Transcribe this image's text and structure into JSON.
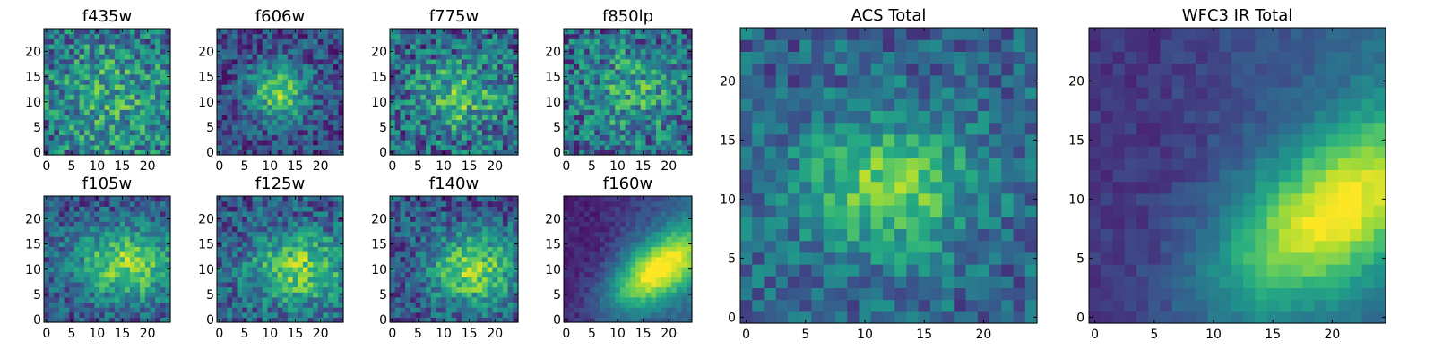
{
  "figure": {
    "colormap": "viridis",
    "colors": [
      "#440154",
      "#3b528b",
      "#21918c",
      "#5ec962",
      "#fde725"
    ]
  },
  "chart_data": [
    {
      "type": "heatmap",
      "title": "f435w",
      "grid_size": 25,
      "xlim": [
        0,
        24
      ],
      "ylim": [
        0,
        24
      ],
      "xticks": [
        "0",
        "5",
        "10",
        "15",
        "20"
      ],
      "yticks": [
        "0",
        "5",
        "10",
        "15",
        "20"
      ],
      "origin": "lower",
      "source_center": [
        13,
        11
      ],
      "pattern": "noisy, weak source"
    },
    {
      "type": "heatmap",
      "title": "f606w",
      "grid_size": 25,
      "xlim": [
        0,
        24
      ],
      "ylim": [
        0,
        24
      ],
      "xticks": [
        "0",
        "5",
        "10",
        "15",
        "20"
      ],
      "yticks": [
        "0",
        "5",
        "10",
        "15",
        "20"
      ],
      "origin": "lower",
      "source_center": [
        12,
        12
      ],
      "pattern": "faint central source"
    },
    {
      "type": "heatmap",
      "title": "f775w",
      "grid_size": 25,
      "xlim": [
        0,
        24
      ],
      "ylim": [
        0,
        24
      ],
      "xticks": [
        "0",
        "5",
        "10",
        "15",
        "20"
      ],
      "yticks": [
        "0",
        "5",
        "10",
        "15",
        "20"
      ],
      "origin": "lower",
      "source_center": [
        13,
        11
      ],
      "pattern": "noisy, moderate source"
    },
    {
      "type": "heatmap",
      "title": "f850lp",
      "grid_size": 25,
      "xlim": [
        0,
        24
      ],
      "ylim": [
        0,
        24
      ],
      "xticks": [
        "0",
        "5",
        "10",
        "15",
        "20"
      ],
      "yticks": [
        "0",
        "5",
        "10",
        "15",
        "20"
      ],
      "origin": "lower",
      "source_center": [
        13,
        12
      ],
      "pattern": "noisy, weak source"
    },
    {
      "type": "heatmap",
      "title": "f105w",
      "grid_size": 25,
      "xlim": [
        0,
        24
      ],
      "ylim": [
        0,
        24
      ],
      "xticks": [
        "0",
        "5",
        "10",
        "15",
        "20"
      ],
      "yticks": [
        "0",
        "5",
        "10",
        "15",
        "20"
      ],
      "origin": "lower",
      "source_center": [
        16,
        11
      ],
      "pattern": "extended source"
    },
    {
      "type": "heatmap",
      "title": "f125w",
      "grid_size": 25,
      "xlim": [
        0,
        24
      ],
      "ylim": [
        0,
        24
      ],
      "xticks": [
        "0",
        "5",
        "10",
        "15",
        "20"
      ],
      "yticks": [
        "0",
        "5",
        "10",
        "15",
        "20"
      ],
      "origin": "lower",
      "source_center": [
        16,
        10
      ],
      "pattern": "extended source"
    },
    {
      "type": "heatmap",
      "title": "f140w",
      "grid_size": 25,
      "xlim": [
        0,
        24
      ],
      "ylim": [
        0,
        24
      ],
      "xticks": [
        "0",
        "5",
        "10",
        "15",
        "20"
      ],
      "yticks": [
        "0",
        "5",
        "10",
        "15",
        "20"
      ],
      "origin": "lower",
      "source_center": [
        16,
        10
      ],
      "pattern": "extended source"
    },
    {
      "type": "heatmap",
      "title": "f160w",
      "grid_size": 25,
      "xlim": [
        0,
        24
      ],
      "ylim": [
        0,
        24
      ],
      "xticks": [
        "0",
        "5",
        "10",
        "15",
        "20"
      ],
      "yticks": [
        "0",
        "5",
        "10",
        "15",
        "20"
      ],
      "origin": "lower",
      "source_center": [
        18,
        10
      ],
      "pattern": "smooth diagonal band"
    },
    {
      "type": "heatmap",
      "title": "ACS Total",
      "grid_size": 25,
      "xlim": [
        0,
        24
      ],
      "ylim": [
        0,
        24
      ],
      "xticks": [
        "0",
        "5",
        "10",
        "15",
        "20"
      ],
      "yticks": [
        "0",
        "5",
        "10",
        "15",
        "20"
      ],
      "origin": "lower",
      "source_center": [
        12,
        11
      ],
      "pattern": "central source"
    },
    {
      "type": "heatmap",
      "title": "WFC3 IR Total",
      "grid_size": 25,
      "xlim": [
        0,
        24
      ],
      "ylim": [
        0,
        24
      ],
      "xticks": [
        "0",
        "5",
        "10",
        "15",
        "20"
      ],
      "yticks": [
        "0",
        "5",
        "10",
        "15",
        "20"
      ],
      "origin": "lower",
      "source_center": [
        20,
        9
      ],
      "pattern": "smooth diagonal band"
    }
  ]
}
